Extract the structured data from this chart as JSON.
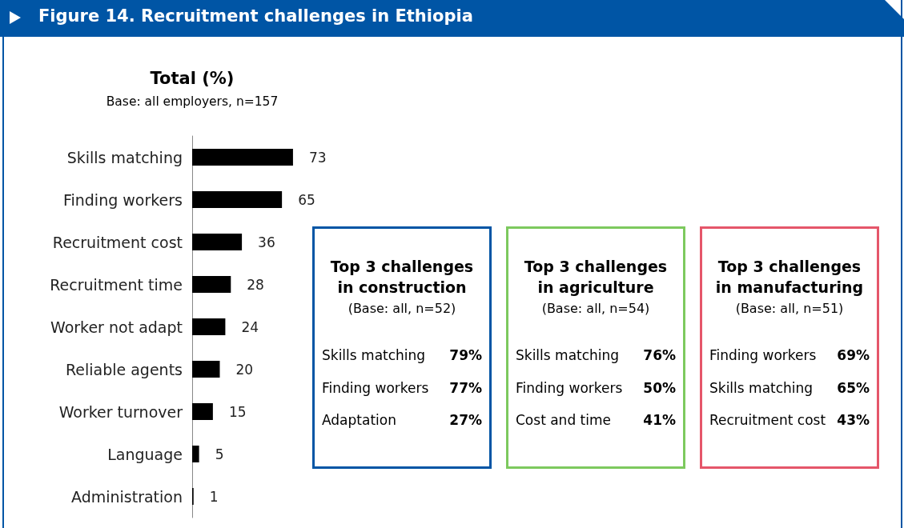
{
  "chart_data": [
    {
      "type": "bar",
      "orientation": "horizontal",
      "title": "Figure 14.  Recruitment challenges in Ethiopia",
      "subtitle": "Total (%)",
      "annotations": [
        "Base: all employers, n=157"
      ],
      "categories": [
        "Skills matching",
        "Finding workers",
        "Recruitment cost",
        "Recruitment time",
        "Worker not adapt",
        "Reliable agents",
        "Worker turnover",
        "Language",
        "Administration"
      ],
      "values": [
        73,
        65,
        36,
        28,
        24,
        20,
        15,
        5,
        1
      ],
      "color": "#000000",
      "data_labels": true
    },
    {
      "type": "other",
      "title": "Top 3 challenges in construction",
      "subtitle": "(Base: all, n=52)",
      "color": "#0055a5",
      "categories": [
        "Skills matching",
        "Finding workers",
        "Adaptation"
      ],
      "value_labels": [
        "79%",
        "77%",
        "27%"
      ]
    },
    {
      "type": "other",
      "title": "Top 3 challenges in agriculture",
      "subtitle": "(Base: all, n=54)",
      "color": "#7dc95e",
      "categories": [
        "Skills matching",
        "Finding workers",
        "Cost and time"
      ],
      "value_labels": [
        "76%",
        "50%",
        "41%"
      ]
    },
    {
      "type": "other",
      "title": "Top 3 challenges in manufacturing",
      "subtitle": "(Base: all, n=51)",
      "color": "#e5566a",
      "categories": [
        "Finding workers",
        "Skills matching",
        "Recruitment cost"
      ],
      "value_labels": [
        "69%",
        "65%",
        "43%"
      ]
    }
  ]
}
